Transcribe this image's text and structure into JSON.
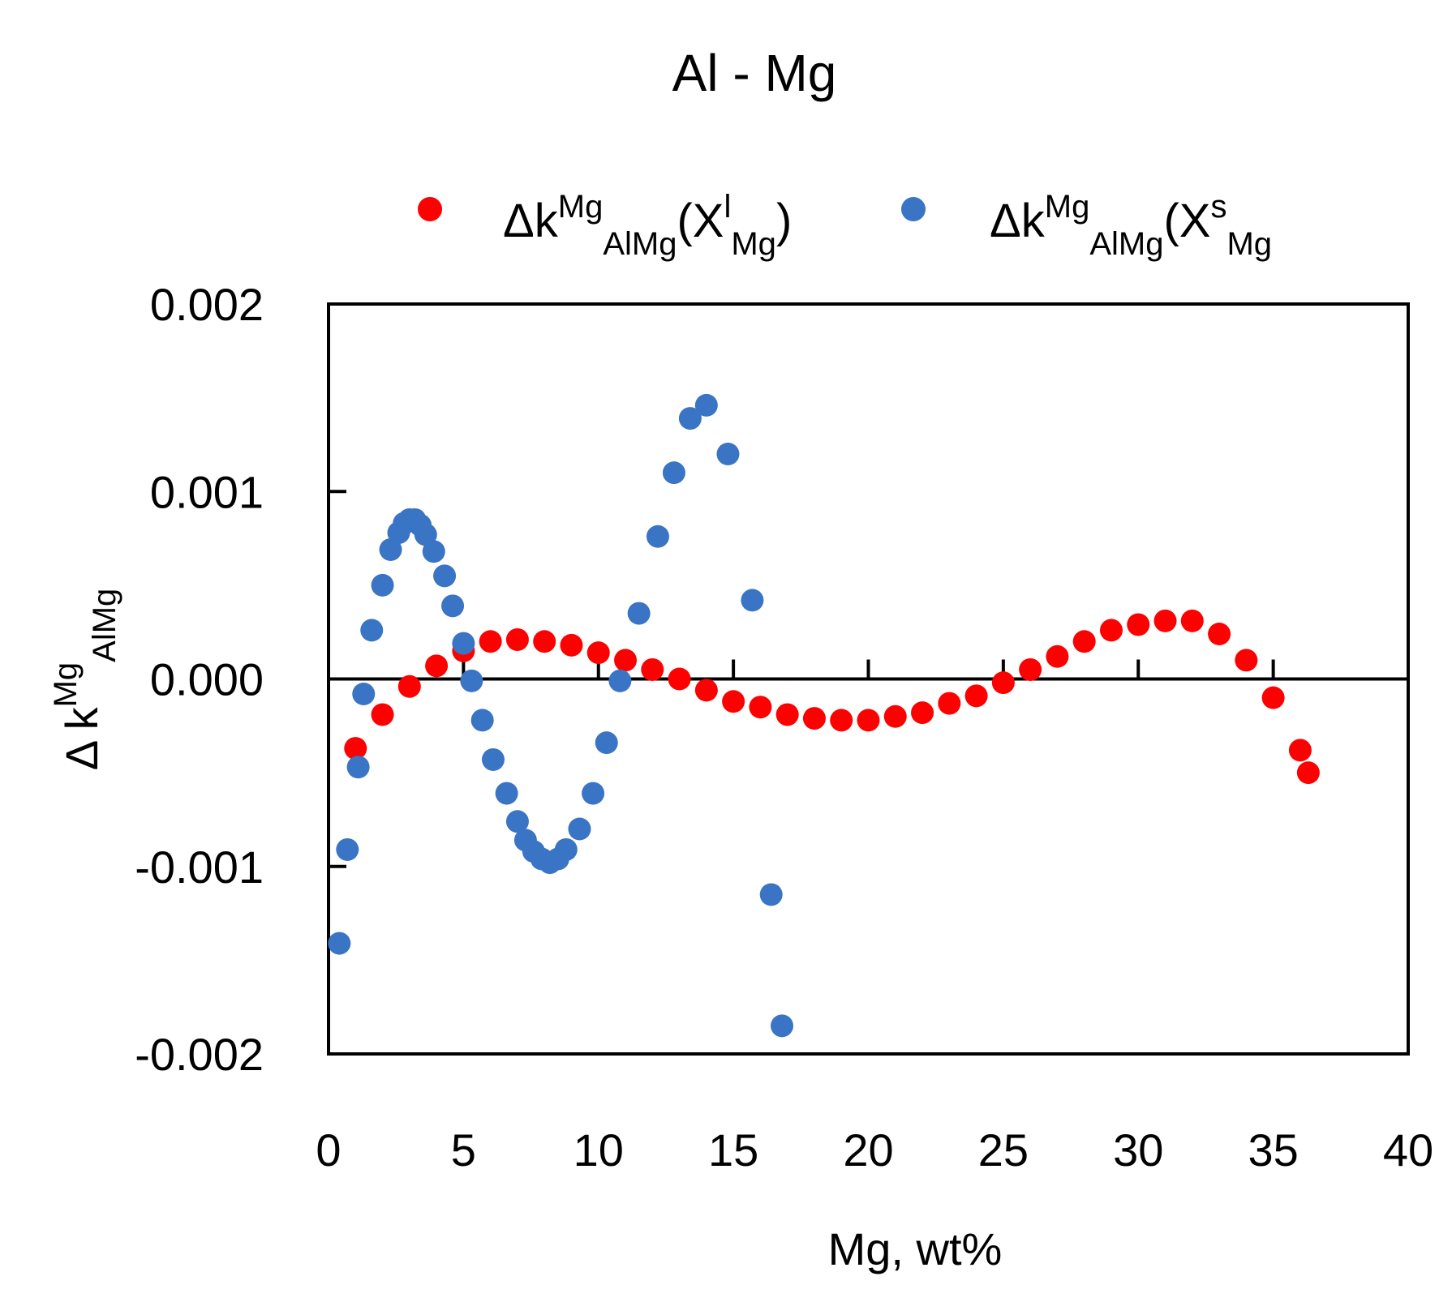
{
  "chart_data": {
    "type": "scatter",
    "title": "Al - Mg",
    "xlabel": "Mg, wt%",
    "ylabel": {
      "main": "Δ k",
      "sup": "Mg",
      "sub": "AlMg"
    },
    "xlim": [
      0,
      40
    ],
    "ylim": [
      -0.002,
      0.002
    ],
    "x_ticks": [
      0,
      5,
      10,
      15,
      20,
      25,
      30,
      35,
      40
    ],
    "x_tick_labels": [
      "0",
      "5",
      "10",
      "15",
      "20",
      "25",
      "30",
      "35",
      "40"
    ],
    "y_ticks": [
      0.002,
      0.001,
      0.0,
      -0.001,
      -0.002
    ],
    "y_tick_labels": [
      "0.002",
      "0.001",
      "0.000",
      "-0.001",
      "-0.002"
    ],
    "grid": false,
    "legend_position": "top",
    "series": [
      {
        "name": "Δk^Mg_AlMg(X^l_Mg)",
        "legend": {
          "base": "Δk",
          "sup": "Mg",
          "sub": "AlMg",
          "open": "(X",
          "sup2": "l",
          "sub2": "Mg",
          "close": ")"
        },
        "color": "#ff0000",
        "points": [
          [
            1.0,
            -0.00037
          ],
          [
            2.0,
            -0.00019
          ],
          [
            3.0,
            -4e-05
          ],
          [
            4.0,
            7e-05
          ],
          [
            5.0,
            0.00015
          ],
          [
            6.0,
            0.0002
          ],
          [
            7.0,
            0.00021
          ],
          [
            8.0,
            0.0002
          ],
          [
            9.0,
            0.00018
          ],
          [
            10.0,
            0.00014
          ],
          [
            11.0,
            0.0001
          ],
          [
            12.0,
            5e-05
          ],
          [
            13.0,
            0.0
          ],
          [
            14.0,
            -6e-05
          ],
          [
            15.0,
            -0.00012
          ],
          [
            16.0,
            -0.00015
          ],
          [
            17.0,
            -0.00019
          ],
          [
            18.0,
            -0.00021
          ],
          [
            19.0,
            -0.00022
          ],
          [
            20.0,
            -0.00022
          ],
          [
            21.0,
            -0.0002
          ],
          [
            22.0,
            -0.00018
          ],
          [
            23.0,
            -0.00013
          ],
          [
            24.0,
            -9e-05
          ],
          [
            25.0,
            -2e-05
          ],
          [
            26.0,
            5e-05
          ],
          [
            27.0,
            0.00012
          ],
          [
            28.0,
            0.0002
          ],
          [
            29.0,
            0.00026
          ],
          [
            30.0,
            0.00029
          ],
          [
            31.0,
            0.00031
          ],
          [
            32.0,
            0.00031
          ],
          [
            33.0,
            0.00024
          ],
          [
            34.0,
            0.0001
          ],
          [
            35.0,
            -0.0001
          ],
          [
            36.0,
            -0.00038
          ],
          [
            36.3,
            -0.0005
          ]
        ]
      },
      {
        "name": "Δk^Mg_AlMg(X^s_Mg",
        "legend": {
          "base": "Δk",
          "sup": "Mg",
          "sub": "AlMg",
          "open": "(X",
          "sup2": "s",
          "sub2": "Mg",
          "close": ""
        },
        "color": "#3a74c4",
        "points": [
          [
            0.4,
            -0.00141
          ],
          [
            0.7,
            -0.00091
          ],
          [
            1.1,
            -0.00047
          ],
          [
            1.3,
            -8e-05
          ],
          [
            1.6,
            0.00026
          ],
          [
            2.0,
            0.0005
          ],
          [
            2.3,
            0.00069
          ],
          [
            2.6,
            0.00078
          ],
          [
            2.8,
            0.00083
          ],
          [
            3.0,
            0.00085
          ],
          [
            3.2,
            0.00085
          ],
          [
            3.4,
            0.00082
          ],
          [
            3.6,
            0.00077
          ],
          [
            3.9,
            0.00068
          ],
          [
            4.3,
            0.00055
          ],
          [
            4.6,
            0.00039
          ],
          [
            5.0,
            0.00019
          ],
          [
            5.3,
            -1e-05
          ],
          [
            5.7,
            -0.00022
          ],
          [
            6.1,
            -0.00043
          ],
          [
            6.6,
            -0.00061
          ],
          [
            7.0,
            -0.00076
          ],
          [
            7.3,
            -0.00086
          ],
          [
            7.6,
            -0.00092
          ],
          [
            7.9,
            -0.00096
          ],
          [
            8.2,
            -0.00098
          ],
          [
            8.5,
            -0.00096
          ],
          [
            8.8,
            -0.00091
          ],
          [
            9.3,
            -0.0008
          ],
          [
            9.8,
            -0.00061
          ],
          [
            10.3,
            -0.00034
          ],
          [
            10.8,
            -1e-05
          ],
          [
            11.5,
            0.00035
          ],
          [
            12.2,
            0.00076
          ],
          [
            12.8,
            0.0011
          ],
          [
            13.4,
            0.00139
          ],
          [
            14.0,
            0.00146
          ],
          [
            14.8,
            0.0012
          ],
          [
            15.7,
            0.00042
          ],
          [
            16.4,
            -0.00115
          ],
          [
            16.8,
            -0.00185
          ]
        ]
      }
    ]
  }
}
